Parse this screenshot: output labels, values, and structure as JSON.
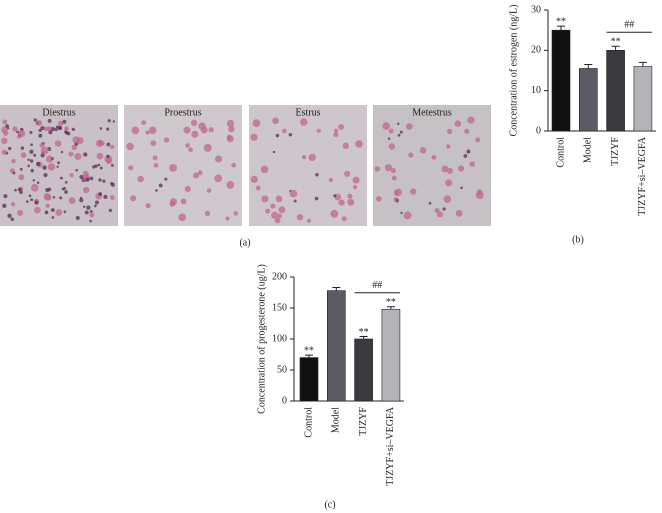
{
  "figure": {
    "panel_a": {
      "label": "(a)",
      "images": [
        "Diestrus",
        "Proestrus",
        "Estrus",
        "Metestrus"
      ]
    },
    "panel_b_label": "(b)",
    "panel_c_label": "(c)"
  },
  "chart_data": [
    {
      "type": "bar",
      "y_label": "Concentration of estrogen (ng/L)",
      "categories": [
        "Control",
        "Model",
        "TJZYF",
        "TJZYF+si–VEGFA"
      ],
      "values": [
        25,
        15.5,
        20,
        16
      ],
      "errors": [
        1,
        1,
        1,
        1
      ],
      "markers": [
        "**",
        null,
        "**",
        null
      ],
      "bracket_label": "##",
      "colors": [
        "#111111",
        "#5b5b63",
        "#3a3a3e",
        "#b4b4b8"
      ],
      "ylim": [
        0,
        30
      ],
      "yticks": [
        0,
        10,
        20,
        30
      ]
    },
    {
      "type": "bar",
      "y_label": "Concentration of progesterone (ug/L)",
      "categories": [
        "Control",
        "Model",
        "TJZYF",
        "TJZYF+si–VEGFA"
      ],
      "values": [
        70,
        178,
        100,
        148
      ],
      "errors": [
        4,
        5,
        4,
        4
      ],
      "markers": [
        "**",
        null,
        "**",
        "**"
      ],
      "bracket_label": "##",
      "colors": [
        "#111111",
        "#5b5b63",
        "#3a3a3e",
        "#b4b4b8"
      ],
      "ylim": [
        0,
        200
      ],
      "yticks": [
        0,
        50,
        100,
        150,
        200
      ]
    }
  ]
}
